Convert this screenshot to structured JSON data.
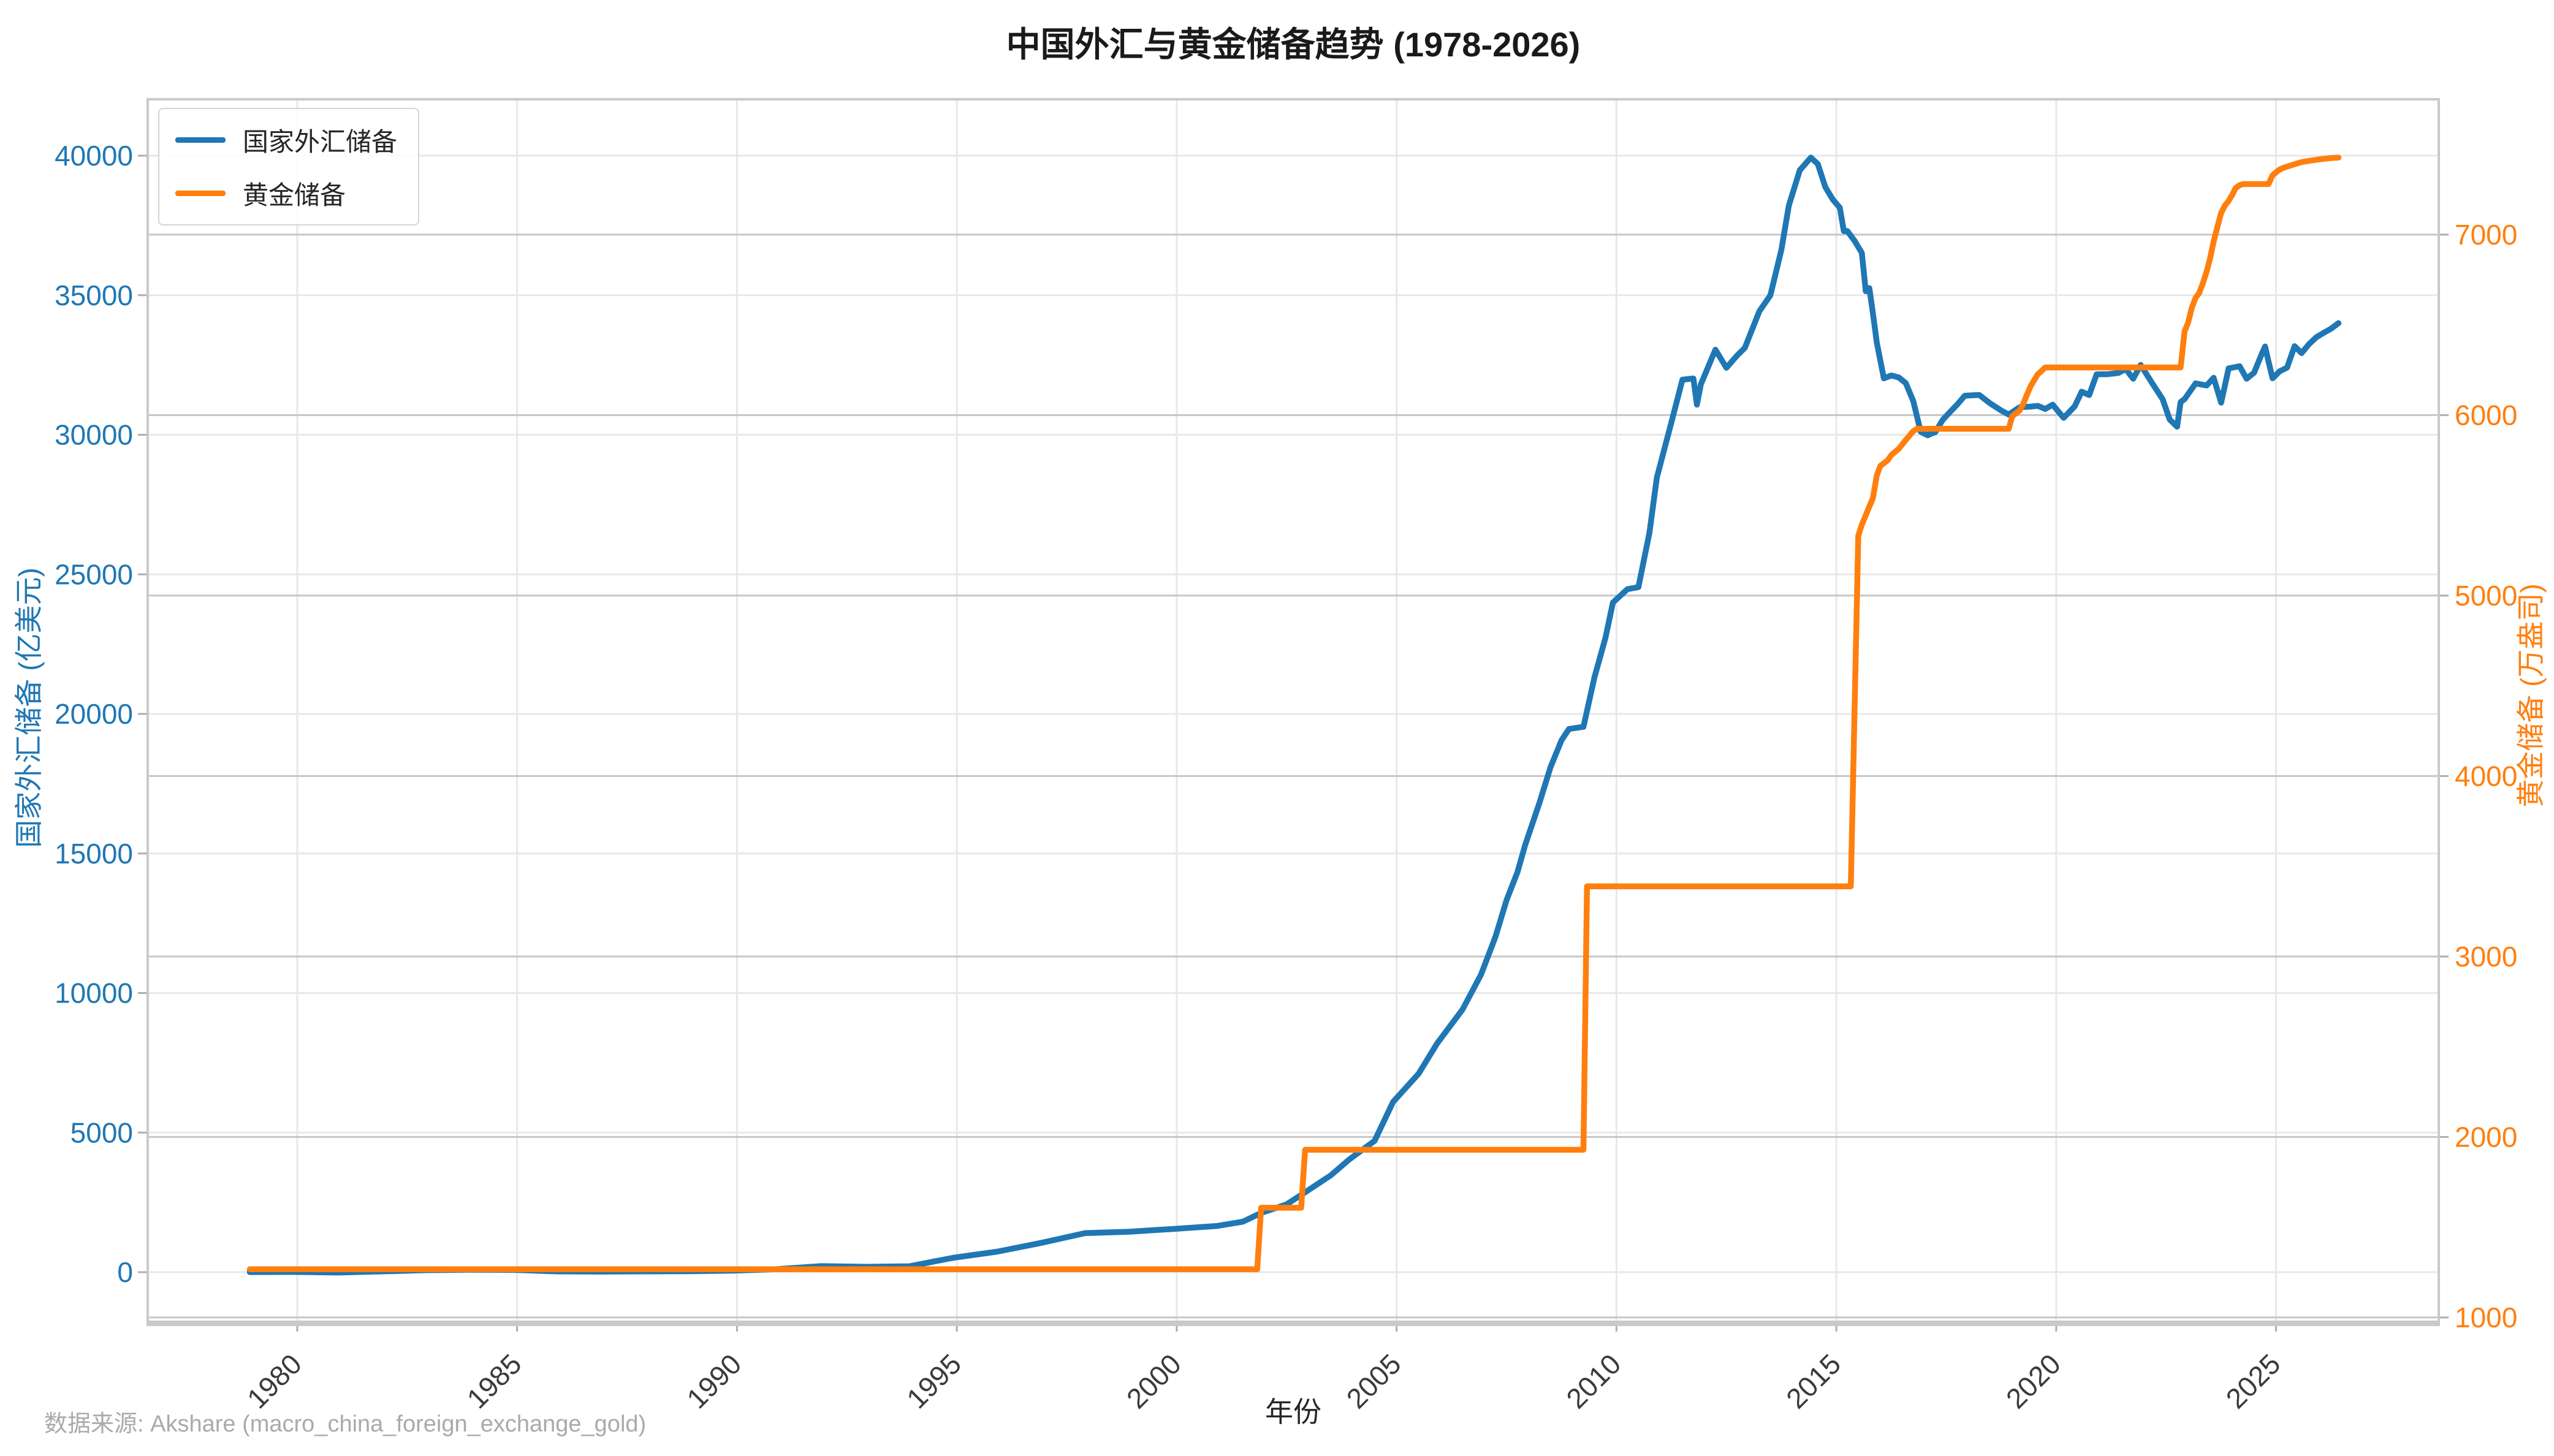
{
  "header": {
    "title": "中国外汇与黄金储备趋势 (1978-2026)"
  },
  "footer": {
    "source_note": "数据来源: Akshare (macro_china_foreign_exchange_gold)"
  },
  "colors": {
    "forex": "#1f77b4",
    "gold": "#ff7f0e",
    "grid": "#e8e8e8",
    "grid_right": "#c6c6c6",
    "spine": "#c9c9c9",
    "tick_mark": "#aeaeae",
    "x_tick_label": "#3a3a3a",
    "source_text": "#aaaaaa"
  },
  "chart_data": {
    "type": "line",
    "title": "中国外汇与黄金储备趋势 (1978-2026)",
    "xlabel": "年份",
    "ylabel_left": "国家外汇储备 (亿美元)",
    "ylabel_right": "黄金储备 (万盎司)",
    "xlim": [
      1976.6,
      2028.7
    ],
    "ylim_left": [
      -1778,
      42020
    ],
    "ylim_right": [
      976,
      7750
    ],
    "xticks": [
      1980,
      1985,
      1990,
      1995,
      2000,
      2005,
      2010,
      2015,
      2020,
      2025
    ],
    "yticks_left": [
      0,
      5000,
      10000,
      15000,
      20000,
      25000,
      30000,
      35000,
      40000
    ],
    "yticks_right": [
      1000,
      2000,
      3000,
      4000,
      5000,
      6000,
      7000
    ],
    "grid": true,
    "legend_position": "upper left",
    "series": [
      {
        "name": "国家外汇储备",
        "axis": "left",
        "color": "#1f77b4",
        "points": [
          [
            1978.92,
            1.67
          ],
          [
            1979.92,
            8.4
          ],
          [
            1980.92,
            -13
          ],
          [
            1981.92,
            27
          ],
          [
            1982.92,
            70
          ],
          [
            1983.92,
            89
          ],
          [
            1984.92,
            82
          ],
          [
            1985.92,
            26
          ],
          [
            1986.92,
            21
          ],
          [
            1987.92,
            29
          ],
          [
            1988.92,
            34
          ],
          [
            1989.92,
            56
          ],
          [
            1990.92,
            111
          ],
          [
            1991.92,
            217
          ],
          [
            1992.92,
            194
          ],
          [
            1993.92,
            212
          ],
          [
            1994.92,
            516
          ],
          [
            1995.92,
            736
          ],
          [
            1996.92,
            1050
          ],
          [
            1997.92,
            1399
          ],
          [
            1998.92,
            1450
          ],
          [
            1999.92,
            1547
          ],
          [
            2000.92,
            1656
          ],
          [
            2001.5,
            1808
          ],
          [
            2001.92,
            2122
          ],
          [
            2002.5,
            2428
          ],
          [
            2002.92,
            2864
          ],
          [
            2003.5,
            3465
          ],
          [
            2003.92,
            4033
          ],
          [
            2004.5,
            4706
          ],
          [
            2004.92,
            6099
          ],
          [
            2005.5,
            7110
          ],
          [
            2005.92,
            8189
          ],
          [
            2006.5,
            9411
          ],
          [
            2006.92,
            10663
          ],
          [
            2007.25,
            12020
          ],
          [
            2007.5,
            13326
          ],
          [
            2007.75,
            14336
          ],
          [
            2007.92,
            15282
          ],
          [
            2008.25,
            16822
          ],
          [
            2008.5,
            18088
          ],
          [
            2008.75,
            19056
          ],
          [
            2008.92,
            19460
          ],
          [
            2009.25,
            19537
          ],
          [
            2009.5,
            21316
          ],
          [
            2009.75,
            22726
          ],
          [
            2009.92,
            23992
          ],
          [
            2010.25,
            24471
          ],
          [
            2010.5,
            24543
          ],
          [
            2010.75,
            26483
          ],
          [
            2010.92,
            28473
          ],
          [
            2011.25,
            30447
          ],
          [
            2011.5,
            31975
          ],
          [
            2011.75,
            32017
          ],
          [
            2011.83,
            31081
          ],
          [
            2011.92,
            31811
          ],
          [
            2012.25,
            33050
          ],
          [
            2012.5,
            32400
          ],
          [
            2012.75,
            32851
          ],
          [
            2012.92,
            33116
          ],
          [
            2013.25,
            34426
          ],
          [
            2013.5,
            35000
          ],
          [
            2013.75,
            36627
          ],
          [
            2013.92,
            38213
          ],
          [
            2014.17,
            39481
          ],
          [
            2014.42,
            39932
          ],
          [
            2014.58,
            39700
          ],
          [
            2014.75,
            38877
          ],
          [
            2014.92,
            38430
          ],
          [
            2015.08,
            38134
          ],
          [
            2015.17,
            37301
          ],
          [
            2015.25,
            37300
          ],
          [
            2015.42,
            36938
          ],
          [
            2015.58,
            36514
          ],
          [
            2015.67,
            35141
          ],
          [
            2015.75,
            35255
          ],
          [
            2015.83,
            34383
          ],
          [
            2015.92,
            33304
          ],
          [
            2016.08,
            32023
          ],
          [
            2016.25,
            32126
          ],
          [
            2016.42,
            32052
          ],
          [
            2016.58,
            31852
          ],
          [
            2016.75,
            31207
          ],
          [
            2016.92,
            30105
          ],
          [
            2017.08,
            29982
          ],
          [
            2017.17,
            30051
          ],
          [
            2017.25,
            30091
          ],
          [
            2017.42,
            30536
          ],
          [
            2017.58,
            30807
          ],
          [
            2017.75,
            31085
          ],
          [
            2017.92,
            31399
          ],
          [
            2018.25,
            31428
          ],
          [
            2018.5,
            31121
          ],
          [
            2018.75,
            30870
          ],
          [
            2018.92,
            30727
          ],
          [
            2019.17,
            30988
          ],
          [
            2019.42,
            31010
          ],
          [
            2019.58,
            31037
          ],
          [
            2019.75,
            30924
          ],
          [
            2019.92,
            31079
          ],
          [
            2020.17,
            30607
          ],
          [
            2020.42,
            31017
          ],
          [
            2020.58,
            31544
          ],
          [
            2020.75,
            31426
          ],
          [
            2020.92,
            32165
          ],
          [
            2021.17,
            32170
          ],
          [
            2021.42,
            32218
          ],
          [
            2021.58,
            32359
          ],
          [
            2021.75,
            32006
          ],
          [
            2021.92,
            32502
          ],
          [
            2022.17,
            31880
          ],
          [
            2022.42,
            31278
          ],
          [
            2022.58,
            30549
          ],
          [
            2022.75,
            30290
          ],
          [
            2022.83,
            31172
          ],
          [
            2022.92,
            31277
          ],
          [
            2023.17,
            31839
          ],
          [
            2023.42,
            31765
          ],
          [
            2023.58,
            32043
          ],
          [
            2023.75,
            31151
          ],
          [
            2023.83,
            31718
          ],
          [
            2023.92,
            32380
          ],
          [
            2024.17,
            32457
          ],
          [
            2024.33,
            32008
          ],
          [
            2024.5,
            32224
          ],
          [
            2024.67,
            32882
          ],
          [
            2024.75,
            33164
          ],
          [
            2024.83,
            32617
          ],
          [
            2024.92,
            32024
          ],
          [
            2025.08,
            32272
          ],
          [
            2025.25,
            32407
          ],
          [
            2025.42,
            33174
          ],
          [
            2025.58,
            32924
          ],
          [
            2025.75,
            33250
          ],
          [
            2025.92,
            33500
          ],
          [
            2026.08,
            33650
          ],
          [
            2026.25,
            33800
          ],
          [
            2026.42,
            34000
          ]
        ]
      },
      {
        "name": "黄金储备",
        "axis": "right",
        "color": "#ff7f0e",
        "points": [
          [
            1978.92,
            1267
          ],
          [
            2001.83,
            1267
          ],
          [
            2001.92,
            1608
          ],
          [
            2002.83,
            1608
          ],
          [
            2002.92,
            1929
          ],
          [
            2009.25,
            1929
          ],
          [
            2009.33,
            3389
          ],
          [
            2015.33,
            3389
          ],
          [
            2015.5,
            5332
          ],
          [
            2015.58,
            5393
          ],
          [
            2015.67,
            5445
          ],
          [
            2015.75,
            5493
          ],
          [
            2015.83,
            5538
          ],
          [
            2015.92,
            5666
          ],
          [
            2016.0,
            5718
          ],
          [
            2016.17,
            5750
          ],
          [
            2016.25,
            5779
          ],
          [
            2016.42,
            5814
          ],
          [
            2016.58,
            5862
          ],
          [
            2016.75,
            5911
          ],
          [
            2016.83,
            5924
          ],
          [
            2018.92,
            5924
          ],
          [
            2019.0,
            5994
          ],
          [
            2019.17,
            6026
          ],
          [
            2019.25,
            6062
          ],
          [
            2019.33,
            6110
          ],
          [
            2019.42,
            6161
          ],
          [
            2019.5,
            6194
          ],
          [
            2019.58,
            6226
          ],
          [
            2019.67,
            6245
          ],
          [
            2019.75,
            6264
          ],
          [
            2022.83,
            6264
          ],
          [
            2022.92,
            6464
          ],
          [
            2023.0,
            6512
          ],
          [
            2023.08,
            6592
          ],
          [
            2023.17,
            6650
          ],
          [
            2023.25,
            6676
          ],
          [
            2023.33,
            6727
          ],
          [
            2023.42,
            6795
          ],
          [
            2023.5,
            6869
          ],
          [
            2023.58,
            6962
          ],
          [
            2023.67,
            7046
          ],
          [
            2023.75,
            7120
          ],
          [
            2023.83,
            7158
          ],
          [
            2023.92,
            7187
          ],
          [
            2024.0,
            7219
          ],
          [
            2024.08,
            7258
          ],
          [
            2024.17,
            7274
          ],
          [
            2024.25,
            7280
          ],
          [
            2024.83,
            7280
          ],
          [
            2024.92,
            7329
          ],
          [
            2025.0,
            7345
          ],
          [
            2025.08,
            7361
          ],
          [
            2025.17,
            7370
          ],
          [
            2025.25,
            7377
          ],
          [
            2025.33,
            7383
          ],
          [
            2025.42,
            7390
          ],
          [
            2025.5,
            7396
          ],
          [
            2025.58,
            7402
          ],
          [
            2025.75,
            7409
          ],
          [
            2025.92,
            7415
          ],
          [
            2026.08,
            7420
          ],
          [
            2026.25,
            7424
          ],
          [
            2026.42,
            7427
          ]
        ]
      }
    ]
  }
}
